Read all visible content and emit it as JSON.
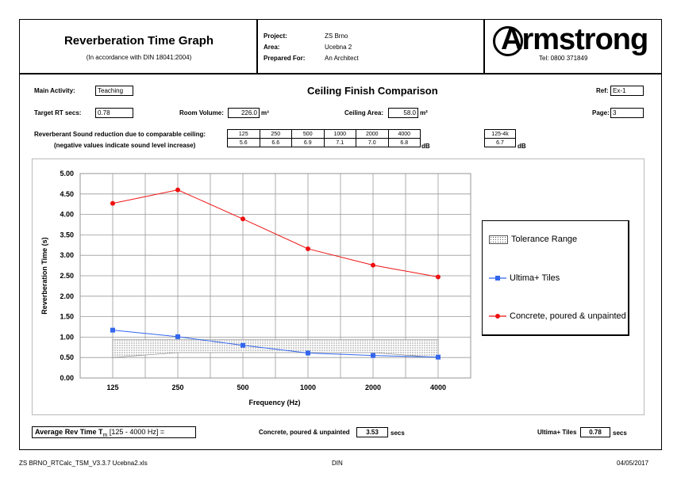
{
  "header": {
    "title": "Reverberation Time Graph",
    "subtitle": "(In accordance with DIN 18041:2004)",
    "project_label": "Project:",
    "project_value": "ZS Brno",
    "area_label": "Area:",
    "area_value": "Ucebna 2",
    "prepared_label": "Prepared For:",
    "prepared_value": "An Architect",
    "logo_text": "Armstrong",
    "tel": "Tel: 0800 371849"
  },
  "info": {
    "main_activity_label": "Main Activity:",
    "main_activity_value": "Teaching",
    "comparison_title": "Ceiling Finish Comparison",
    "ref_label": "Ref:",
    "ref_value": "Ex-1",
    "target_label": "Target RT secs:",
    "target_value": "0.78",
    "room_volume_label": "Room Volume:",
    "room_volume_value": "226.0",
    "room_volume_unit": "m³",
    "ceiling_area_label": "Ceiling Area:",
    "ceiling_area_value": "58.0",
    "ceiling_area_unit": "m²",
    "page_label": "Page:",
    "page_value": "3",
    "reduction_label1": "Reverberant Sound reduction due to comparable ceiling:",
    "reduction_label2": "(negative values indicate sound level increase)",
    "freq_headers": [
      "125",
      "250",
      "500",
      "1000",
      "2000",
      "4000"
    ],
    "freq_values": [
      "5.6",
      "6.6",
      "6.9",
      "7.1",
      "7.0",
      "6.8"
    ],
    "db_unit": "dB",
    "range_header": "125-4k",
    "range_value": "6.7",
    "range_unit": "dB"
  },
  "chart_data": {
    "type": "line",
    "categories": [
      "125",
      "250",
      "500",
      "1000",
      "2000",
      "4000"
    ],
    "xlabel": "Frequency (Hz)",
    "ylabel": "Reverberation Time (s)",
    "ylim": [
      0,
      5
    ],
    "yticks": [
      "0.00",
      "0.50",
      "1.00",
      "1.50",
      "2.00",
      "2.50",
      "3.00",
      "3.50",
      "4.00",
      "4.50",
      "5.00"
    ],
    "grid": true,
    "legend_position": "right",
    "tolerance": {
      "name": "Tolerance Range",
      "upper": [
        0.94,
        0.94,
        0.94,
        0.94,
        0.94,
        0.94
      ],
      "lower": [
        0.5,
        0.62,
        0.62,
        0.62,
        0.62,
        0.5
      ]
    },
    "series": [
      {
        "name": "Ultima+ Tiles",
        "color": "#3366ee",
        "marker": "square",
        "values": [
          1.17,
          1.01,
          0.8,
          0.61,
          0.55,
          0.51
        ]
      },
      {
        "name": "Concrete, poured & unpainted",
        "color": "#ee1111",
        "marker": "circle",
        "values": [
          4.27,
          4.6,
          3.89,
          3.16,
          2.76,
          2.47
        ]
      }
    ]
  },
  "summary": {
    "avg_label": "Average Rev Time T",
    "avg_sub": "m",
    "avg_range": " [125 - 4000 Hz] =",
    "concrete_label": "Concrete, poured & unpainted",
    "concrete_value": "3.53",
    "concrete_unit": "secs",
    "ultima_label": "Ultima+ Tiles",
    "ultima_value": "0.78",
    "ultima_unit": "secs"
  },
  "footer": {
    "file": "ZS BRNO_RTCalc_TSM_V3.3.7 Ucebna2.xls",
    "standard": "DIN",
    "date": "04/05/2017"
  }
}
